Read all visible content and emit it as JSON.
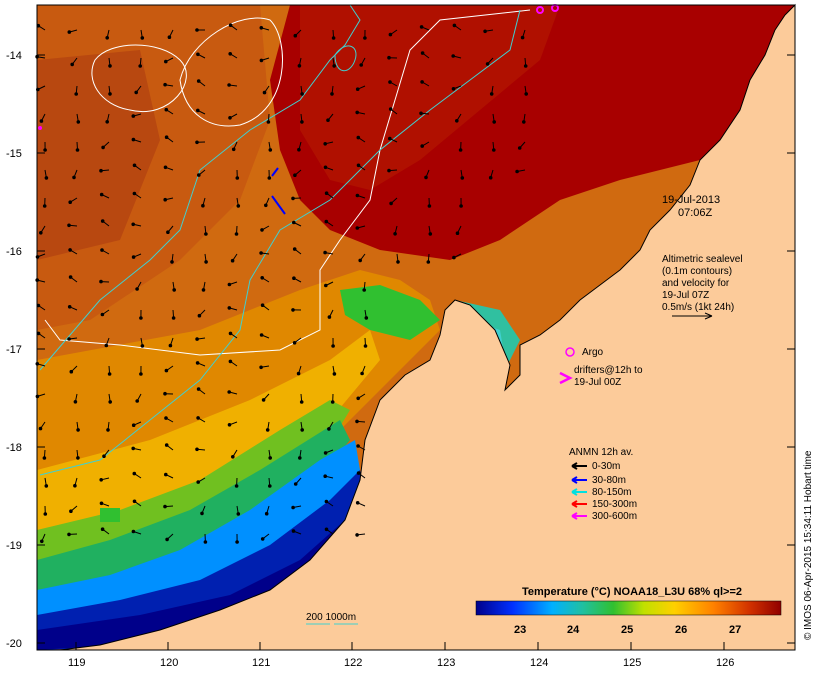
{
  "map": {
    "lon_ticks": [
      "119",
      "120",
      "121",
      "122",
      "123",
      "124",
      "125",
      "126"
    ],
    "lat_ticks": [
      "-14",
      "-15",
      "-16",
      "-17",
      "-18",
      "-19",
      "-20"
    ],
    "lon_range": [
      118.6,
      126.7
    ],
    "lat_range": [
      -20.1,
      -13.6
    ]
  },
  "timestamp": {
    "date": "19-Jul-2013",
    "time": "07:06Z"
  },
  "altimetry": {
    "line1": "Altimetric sealevel",
    "line2": "(0.1m contours)",
    "line3": "and velocity for",
    "line4": "19-Jul 07Z",
    "line5": "0.5m/s (1kt 24h)"
  },
  "argo": {
    "label": "Argo"
  },
  "drifters": {
    "line1": "drifters@12h to",
    "line2": "19-Jul 00Z"
  },
  "anmn": {
    "title": "ANMN 12h av.",
    "items": [
      {
        "label": "0-30m",
        "color": "#000000"
      },
      {
        "label": "30-80m",
        "color": "#0000ff"
      },
      {
        "label": "80-150m",
        "color": "#00e0e0"
      },
      {
        "label": "150-300m",
        "color": "#ff0000"
      },
      {
        "label": "300-600m",
        "color": "#ff00ff"
      }
    ]
  },
  "isobath": {
    "label": "200  1000m"
  },
  "colorbar": {
    "title": "Temperature (°C) NOAA18_L3U 68% ql>=2",
    "ticks": [
      "23",
      "24",
      "25",
      "26",
      "27"
    ]
  },
  "credit": "© IMOS 06-Apr-2015 15:34:11 Hobart time",
  "colors": {
    "land": "#fccb9a",
    "warm": "#a80000",
    "mid": "#d86a00",
    "cool": "#1a9a2a",
    "cold": "#00008a"
  }
}
